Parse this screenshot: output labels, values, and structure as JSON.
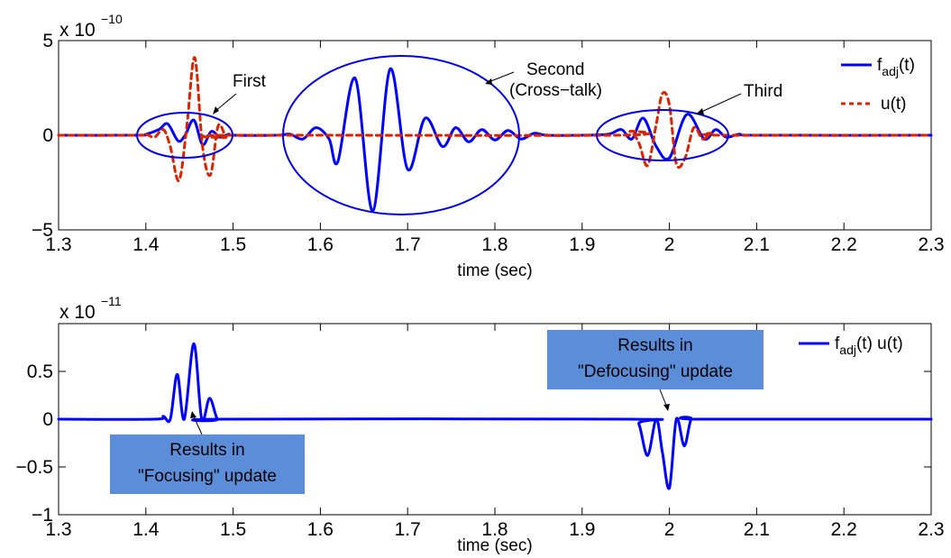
{
  "chart_data": [
    {
      "type": "line",
      "exponent_label": "x 10",
      "exponent": "−10",
      "xlabel": "time (sec)",
      "xlim": [
        1.3,
        2.3
      ],
      "ylim": [
        -5,
        5
      ],
      "xticks": [
        "1.3",
        "1.4",
        "1.5",
        "1.6",
        "1.7",
        "1.8",
        "1.9",
        "2",
        "2.1",
        "2.2",
        "2.3"
      ],
      "yticks": [
        "5",
        "0",
        "−5"
      ],
      "grid": false,
      "legend_position": "top-right",
      "series": [
        {
          "name": "f",
          "name_sub": "adj",
          "name_tail": "(t)",
          "color": "#0000ff",
          "style": "solid",
          "x": [
            1.3,
            1.39,
            1.4,
            1.415,
            1.425,
            1.437,
            1.445,
            1.455,
            1.465,
            1.475,
            1.485,
            1.495,
            1.5,
            1.55,
            1.565,
            1.58,
            1.595,
            1.61,
            1.62,
            1.64,
            1.66,
            1.68,
            1.7,
            1.72,
            1.74,
            1.755,
            1.77,
            1.785,
            1.8,
            1.815,
            1.83,
            1.845,
            1.86,
            1.9,
            1.93,
            1.945,
            1.957,
            1.97,
            1.985,
            2.0,
            2.02,
            2.04,
            2.053,
            2.065,
            2.08,
            2.1,
            2.3
          ],
          "values": [
            0,
            0,
            0.05,
            0.3,
            0.6,
            -0.3,
            0,
            0.8,
            -0.5,
            0.2,
            -0.1,
            0.05,
            0,
            0,
            0.05,
            -0.2,
            0.4,
            -0.2,
            -1.4,
            3.0,
            -4.0,
            3.5,
            -1.8,
            0.9,
            -0.6,
            0.4,
            -0.35,
            0.3,
            -0.25,
            0.25,
            -0.2,
            0.1,
            0,
            0,
            0.05,
            0.3,
            -0.2,
            0.9,
            -0.6,
            -1.2,
            1.1,
            -0.2,
            0.3,
            -0.1,
            0.05,
            0,
            0
          ]
        },
        {
          "name": "u(t)",
          "color": "#dd2200",
          "style": "dashed",
          "x": [
            1.3,
            1.39,
            1.4,
            1.41,
            1.42,
            1.428,
            1.438,
            1.447,
            1.456,
            1.465,
            1.474,
            1.483,
            1.492,
            1.5,
            2.3
          ],
          "values": [
            0,
            0,
            0.05,
            -0.1,
            0.3,
            -0.6,
            -2.4,
            0.5,
            4.1,
            -0.6,
            -2.1,
            0.5,
            -0.1,
            0,
            0
          ],
          "x2": [
            1.94,
            1.955,
            1.965,
            1.975,
            1.985,
            1.992,
            2.0,
            2.008,
            2.018,
            2.028,
            2.038,
            2.048,
            2.06
          ],
          "values2": [
            0,
            0.2,
            -0.4,
            -1.6,
            0.6,
            2.2,
            1.6,
            -1.5,
            -1.2,
            0.4,
            -0.2,
            0.1,
            0
          ]
        }
      ],
      "annotations": [
        {
          "label": "First"
        },
        {
          "label": "Second"
        },
        {
          "label": "(Cross−talk)"
        },
        {
          "label": "Third"
        }
      ]
    },
    {
      "type": "line",
      "exponent_label": "x 10",
      "exponent": "−11",
      "xlabel": "time (sec)",
      "xlim": [
        1.3,
        2.3
      ],
      "ylim": [
        -1,
        1
      ],
      "xticks": [
        "1.3",
        "1.4",
        "1.5",
        "1.6",
        "1.7",
        "1.8",
        "1.9",
        "2",
        "2.1",
        "2.2",
        "2.3"
      ],
      "yticks": [
        "0.5",
        "0",
        "−0.5",
        "−1"
      ],
      "grid": false,
      "legend_position": "top-right",
      "series": [
        {
          "name": "f",
          "name_sub": "adj",
          "name_tail": "(t) u(t)",
          "color": "#0000ff",
          "style": "solid",
          "x": [
            1.3,
            1.41,
            1.42,
            1.428,
            1.436,
            1.444,
            1.455,
            1.464,
            1.473,
            1.482,
            1.49,
            2.3
          ],
          "values": [
            0,
            0,
            0.03,
            0,
            0.47,
            0,
            0.79,
            0,
            0.22,
            0,
            0,
            0
          ],
          "x2": [
            1.955,
            1.965,
            1.975,
            1.985,
            1.992,
            2.0,
            2.008,
            2.017,
            2.025,
            2.035
          ],
          "values2": [
            0,
            -0.05,
            -0.38,
            0,
            -0.35,
            -0.72,
            0,
            -0.28,
            0,
            0
          ]
        }
      ],
      "annotations": [
        {
          "line1": "Results in",
          "line2": "\"Focusing\" update",
          "fill": "#5b8dd9"
        },
        {
          "line1": "Results in",
          "line2": "\"Defocusing\" update",
          "fill": "#5b8dd9"
        }
      ]
    }
  ]
}
